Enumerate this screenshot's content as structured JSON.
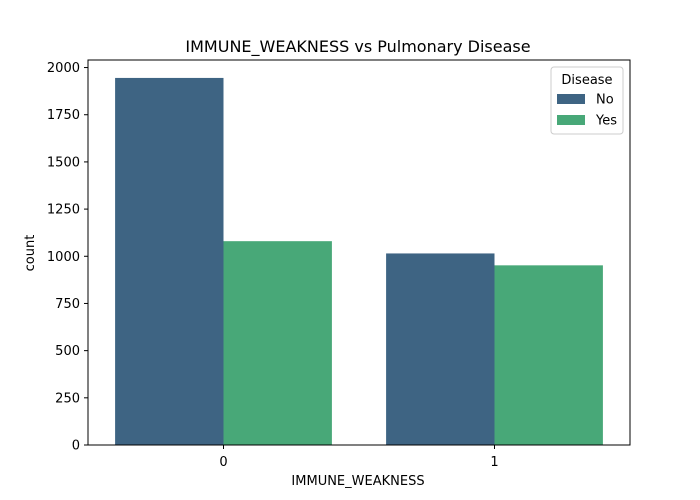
{
  "chart_data": {
    "type": "bar",
    "title": "IMMUNE_WEAKNESS vs Pulmonary Disease",
    "xlabel": "IMMUNE_WEAKNESS",
    "ylabel": "count",
    "categories": [
      "0",
      "1"
    ],
    "series": [
      {
        "name": "No",
        "values": [
          1945,
          1015
        ],
        "color": "#3e6483"
      },
      {
        "name": "Yes",
        "values": [
          1080,
          952
        ],
        "color": "#48a878"
      }
    ],
    "ylim": [
      0,
      2040
    ],
    "yticks": [
      0,
      250,
      500,
      750,
      1000,
      1250,
      1500,
      1750,
      2000
    ],
    "grid": false,
    "legend": {
      "title": "Disease",
      "placement": "top-right"
    }
  }
}
